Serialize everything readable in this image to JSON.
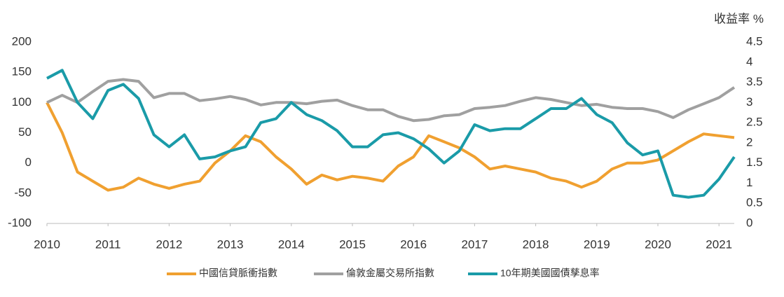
{
  "chart_data": {
    "type": "line",
    "y2_label": "收益率 %",
    "x": [
      2010,
      2010.25,
      2010.5,
      2010.75,
      2011,
      2011.25,
      2011.5,
      2011.75,
      2012,
      2012.25,
      2012.5,
      2012.75,
      2013,
      2013.25,
      2013.5,
      2013.75,
      2014,
      2014.25,
      2014.5,
      2014.75,
      2015,
      2015.25,
      2015.5,
      2015.75,
      2016,
      2016.25,
      2016.5,
      2016.75,
      2017,
      2017.25,
      2017.5,
      2017.75,
      2018,
      2018.25,
      2018.5,
      2018.75,
      2019,
      2019.25,
      2019.5,
      2019.75,
      2020,
      2020.25,
      2020.5,
      2020.75,
      2021,
      2021.25
    ],
    "series": [
      {
        "name": "中國信貸脈衝指數",
        "color": "#f0a030",
        "axis": "y",
        "values": [
          100,
          50,
          -15,
          -30,
          -45,
          -40,
          -25,
          -35,
          -42,
          -35,
          -30,
          0,
          20,
          45,
          35,
          10,
          -10,
          -35,
          -20,
          -28,
          -22,
          -25,
          -30,
          -5,
          10,
          45,
          35,
          25,
          10,
          -10,
          -5,
          -10,
          -15,
          -25,
          -30,
          -40,
          -30,
          -10,
          0,
          0,
          5,
          20,
          35,
          48,
          45,
          42
        ]
      },
      {
        "name": "倫敦金屬交易所指數",
        "color": "#a0a0a0",
        "axis": "y",
        "values": [
          100,
          112,
          100,
          118,
          135,
          138,
          135,
          108,
          115,
          115,
          103,
          106,
          110,
          105,
          96,
          100,
          100,
          98,
          102,
          104,
          95,
          88,
          88,
          77,
          70,
          72,
          78,
          80,
          90,
          92,
          95,
          102,
          108,
          105,
          100,
          95,
          97,
          92,
          90,
          90,
          85,
          75,
          88,
          98,
          108,
          125
        ]
      },
      {
        "name": "10年期美國國債孳息率",
        "color": "#1a9ba8",
        "axis": "y2",
        "values": [
          3.6,
          3.8,
          3.0,
          2.6,
          3.3,
          3.45,
          3.1,
          2.2,
          1.9,
          2.2,
          1.6,
          1.65,
          1.8,
          1.9,
          2.5,
          2.6,
          3.0,
          2.7,
          2.55,
          2.3,
          1.9,
          1.9,
          2.2,
          2.25,
          2.1,
          1.85,
          1.5,
          1.8,
          2.45,
          2.3,
          2.35,
          2.35,
          2.6,
          2.85,
          2.85,
          3.1,
          2.7,
          2.5,
          2.0,
          1.7,
          1.8,
          0.7,
          0.65,
          0.7,
          1.1,
          1.65
        ]
      }
    ],
    "xlim": [
      2010,
      2021.25
    ],
    "xticks": [
      2010,
      2011,
      2012,
      2013,
      2014,
      2015,
      2016,
      2017,
      2018,
      2019,
      2020,
      2021
    ],
    "ylim": [
      -100,
      200
    ],
    "yticks": [
      -100,
      -50,
      0,
      50,
      100,
      150,
      200
    ],
    "y2lim": [
      0,
      4.5
    ],
    "y2ticks": [
      0,
      0.5,
      1,
      1.5,
      2,
      2.5,
      3,
      3.5,
      4,
      4.5
    ],
    "legend": "bottom"
  }
}
